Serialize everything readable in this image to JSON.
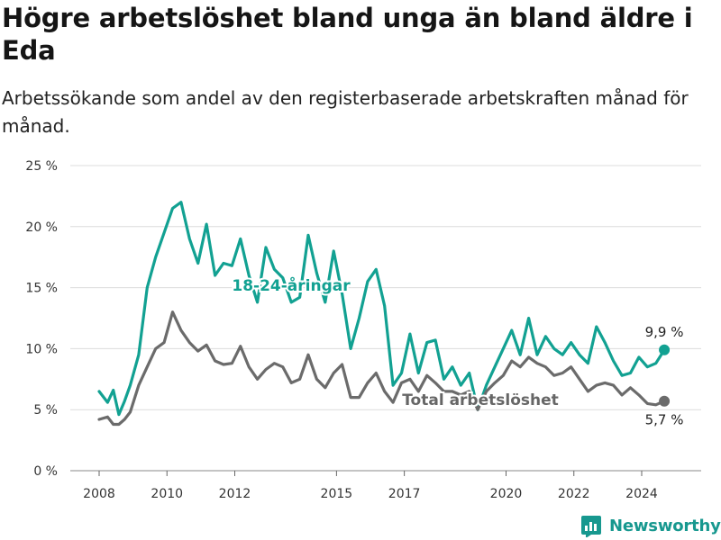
{
  "title": "Högre arbetslöshet bland unga än bland äldre i Eda",
  "subtitle": "Arbetssökande som andel av den registerbaserade arbetskraften månad för månad.",
  "brand": "Newsworthy",
  "colors": {
    "youth": "#12a192",
    "total": "#6b6b6b",
    "grid": "#dcdcdc",
    "brand": "#17988f"
  },
  "chart_data": {
    "type": "line",
    "title": "Högre arbetslöshet bland unga än bland äldre i Eda",
    "xlabel": "",
    "ylabel": "",
    "x_ticks": [
      "2008",
      "2010",
      "2012",
      "2015",
      "2017",
      "2020",
      "2022",
      "2024"
    ],
    "y_ticks": [
      "0 %",
      "5 %",
      "10 %",
      "15 %",
      "20 %",
      "25 %"
    ],
    "ylim": [
      0,
      25
    ],
    "grid": true,
    "series": [
      {
        "name": "18-24-åringar",
        "end_label": "9,9 %",
        "points": [
          [
            "2008-01",
            6.5
          ],
          [
            "2008-04",
            5.6
          ],
          [
            "2008-06",
            6.6
          ],
          [
            "2008-08",
            4.6
          ],
          [
            "2008-10",
            5.7
          ],
          [
            "2008-12",
            7.0
          ],
          [
            "2009-03",
            9.5
          ],
          [
            "2009-06",
            15.0
          ],
          [
            "2009-09",
            17.5
          ],
          [
            "2009-12",
            19.5
          ],
          [
            "2010-03",
            21.5
          ],
          [
            "2010-06",
            22.0
          ],
          [
            "2010-09",
            19.0
          ],
          [
            "2010-12",
            17.0
          ],
          [
            "2011-03",
            20.2
          ],
          [
            "2011-06",
            16.0
          ],
          [
            "2011-09",
            17.0
          ],
          [
            "2011-12",
            16.8
          ],
          [
            "2012-03",
            19.0
          ],
          [
            "2012-06",
            16.0
          ],
          [
            "2012-09",
            13.8
          ],
          [
            "2012-12",
            18.3
          ],
          [
            "2013-03",
            16.5
          ],
          [
            "2013-06",
            15.8
          ],
          [
            "2013-09",
            13.8
          ],
          [
            "2013-12",
            14.2
          ],
          [
            "2014-03",
            19.3
          ],
          [
            "2014-06",
            16.2
          ],
          [
            "2014-09",
            13.8
          ],
          [
            "2014-12",
            18.0
          ],
          [
            "2015-03",
            14.5
          ],
          [
            "2015-06",
            10.0
          ],
          [
            "2015-09",
            12.5
          ],
          [
            "2015-12",
            15.5
          ],
          [
            "2016-03",
            16.5
          ],
          [
            "2016-06",
            13.5
          ],
          [
            "2016-09",
            7.0
          ],
          [
            "2016-12",
            8.0
          ],
          [
            "2017-03",
            11.2
          ],
          [
            "2017-06",
            8.0
          ],
          [
            "2017-09",
            10.5
          ],
          [
            "2017-12",
            10.7
          ],
          [
            "2018-03",
            7.5
          ],
          [
            "2018-06",
            8.5
          ],
          [
            "2018-09",
            7.0
          ],
          [
            "2018-12",
            8.0
          ],
          [
            "2019-03",
            5.0
          ],
          [
            "2019-06",
            7.0
          ],
          [
            "2019-09",
            8.5
          ],
          [
            "2019-12",
            10.0
          ],
          [
            "2020-03",
            11.5
          ],
          [
            "2020-06",
            9.5
          ],
          [
            "2020-09",
            12.5
          ],
          [
            "2020-12",
            9.5
          ],
          [
            "2021-03",
            11.0
          ],
          [
            "2021-06",
            10.0
          ],
          [
            "2021-09",
            9.5
          ],
          [
            "2021-12",
            10.5
          ],
          [
            "2022-03",
            9.5
          ],
          [
            "2022-06",
            8.8
          ],
          [
            "2022-09",
            11.8
          ],
          [
            "2022-12",
            10.5
          ],
          [
            "2023-03",
            9.0
          ],
          [
            "2023-06",
            7.8
          ],
          [
            "2023-09",
            8.0
          ],
          [
            "2023-12",
            9.3
          ],
          [
            "2024-03",
            8.5
          ],
          [
            "2024-06",
            8.8
          ],
          [
            "2024-09",
            9.9
          ]
        ]
      },
      {
        "name": "Total arbetslöshet",
        "end_label": "5,7 %",
        "points": [
          [
            "2008-01",
            4.2
          ],
          [
            "2008-04",
            4.4
          ],
          [
            "2008-06",
            3.8
          ],
          [
            "2008-08",
            3.8
          ],
          [
            "2008-10",
            4.2
          ],
          [
            "2008-12",
            4.8
          ],
          [
            "2009-03",
            7.0
          ],
          [
            "2009-06",
            8.5
          ],
          [
            "2009-09",
            10.0
          ],
          [
            "2009-12",
            10.5
          ],
          [
            "2010-03",
            13.0
          ],
          [
            "2010-06",
            11.5
          ],
          [
            "2010-09",
            10.5
          ],
          [
            "2010-12",
            9.8
          ],
          [
            "2011-03",
            10.3
          ],
          [
            "2011-06",
            9.0
          ],
          [
            "2011-09",
            8.7
          ],
          [
            "2011-12",
            8.8
          ],
          [
            "2012-03",
            10.2
          ],
          [
            "2012-06",
            8.5
          ],
          [
            "2012-09",
            7.5
          ],
          [
            "2012-12",
            8.3
          ],
          [
            "2013-03",
            8.8
          ],
          [
            "2013-06",
            8.5
          ],
          [
            "2013-09",
            7.2
          ],
          [
            "2013-12",
            7.5
          ],
          [
            "2014-03",
            9.5
          ],
          [
            "2014-06",
            7.5
          ],
          [
            "2014-09",
            6.8
          ],
          [
            "2014-12",
            8.0
          ],
          [
            "2015-03",
            8.7
          ],
          [
            "2015-06",
            6.0
          ],
          [
            "2015-09",
            6.0
          ],
          [
            "2015-12",
            7.2
          ],
          [
            "2016-03",
            8.0
          ],
          [
            "2016-06",
            6.5
          ],
          [
            "2016-09",
            5.6
          ],
          [
            "2016-12",
            7.2
          ],
          [
            "2017-03",
            7.5
          ],
          [
            "2017-06",
            6.5
          ],
          [
            "2017-09",
            7.8
          ],
          [
            "2017-12",
            7.2
          ],
          [
            "2018-03",
            6.5
          ],
          [
            "2018-06",
            6.5
          ],
          [
            "2018-09",
            6.2
          ],
          [
            "2018-12",
            6.5
          ],
          [
            "2019-03",
            5.0
          ],
          [
            "2019-06",
            6.5
          ],
          [
            "2019-09",
            7.2
          ],
          [
            "2019-12",
            7.8
          ],
          [
            "2020-03",
            9.0
          ],
          [
            "2020-06",
            8.5
          ],
          [
            "2020-09",
            9.3
          ],
          [
            "2020-12",
            8.8
          ],
          [
            "2021-03",
            8.5
          ],
          [
            "2021-06",
            7.8
          ],
          [
            "2021-09",
            8.0
          ],
          [
            "2021-12",
            8.5
          ],
          [
            "2022-03",
            7.5
          ],
          [
            "2022-06",
            6.5
          ],
          [
            "2022-09",
            7.0
          ],
          [
            "2022-12",
            7.2
          ],
          [
            "2023-03",
            7.0
          ],
          [
            "2023-06",
            6.2
          ],
          [
            "2023-09",
            6.8
          ],
          [
            "2023-12",
            6.2
          ],
          [
            "2024-03",
            5.5
          ],
          [
            "2024-06",
            5.4
          ],
          [
            "2024-09",
            5.7
          ]
        ]
      }
    ]
  }
}
